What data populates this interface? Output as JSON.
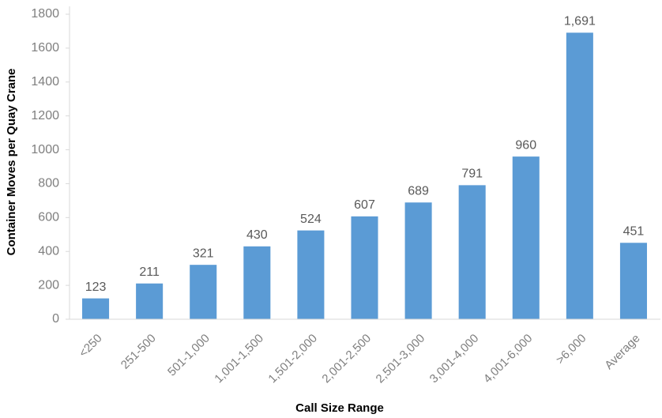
{
  "chart_data": {
    "type": "bar",
    "categories": [
      "<250",
      "251-500",
      "501-1,000",
      "1,001-1,500",
      "1,501-2,000",
      "2,001-2,500",
      "2,501-3,000",
      "3,001-4,000",
      "4,001-6,000",
      ">6,000",
      "Average"
    ],
    "values": [
      123,
      211,
      321,
      430,
      524,
      607,
      689,
      791,
      960,
      1691,
      451
    ],
    "value_labels": [
      "123",
      "211",
      "321",
      "430",
      "524",
      "607",
      "689",
      "791",
      "960",
      "1,691",
      "451"
    ],
    "color": "#5b9bd5",
    "ylim": [
      0,
      1800
    ],
    "yticks": [
      0,
      200,
      400,
      600,
      800,
      1000,
      1200,
      1400,
      1600,
      1800
    ],
    "x_label": "Call Size Range",
    "y_label": "Container Moves per Quay Crane"
  }
}
